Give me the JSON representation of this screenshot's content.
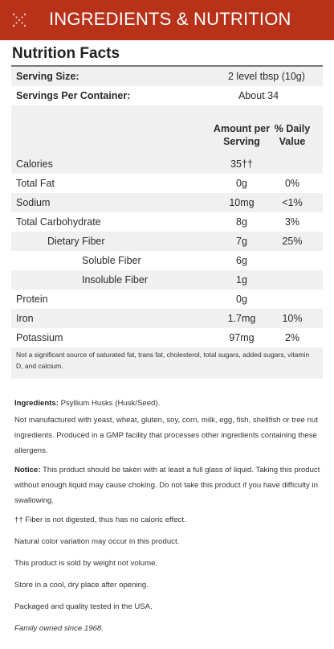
{
  "header": {
    "title": "INGREDIENTS & NUTRITION",
    "icon": "sparkle-icon",
    "bg_color": "#b8321a"
  },
  "nutrition": {
    "title": "Nutrition Facts",
    "serving_size_label": "Serving Size:",
    "serving_size_value": "2 level tbsp (10g)",
    "servings_label": "Servings Per Container:",
    "servings_value": "About 34",
    "col_amount_line1": "Amount per",
    "col_amount_line2": "Serving",
    "col_dv_line1": "% Daily",
    "col_dv_line2": "Value",
    "rows": [
      {
        "label": "Calories",
        "amount": "35††",
        "dv": ""
      },
      {
        "label": "Total Fat",
        "amount": "0g",
        "dv": "0%"
      },
      {
        "label": "Sodium",
        "amount": "10mg",
        "dv": "<1%"
      },
      {
        "label": "Total Carbohydrate",
        "amount": "8g",
        "dv": "3%"
      },
      {
        "label": "Dietary Fiber",
        "amount": "7g",
        "dv": "25%"
      },
      {
        "label": "Soluble Fiber",
        "amount": "6g",
        "dv": ""
      },
      {
        "label": "Insoluble Fiber",
        "amount": "1g",
        "dv": ""
      },
      {
        "label": "Protein",
        "amount": "0g",
        "dv": ""
      },
      {
        "label": "Iron",
        "amount": "1.7mg",
        "dv": "10%"
      },
      {
        "label": "Potassium",
        "amount": "97mg",
        "dv": "2%"
      }
    ],
    "footnote": "Not a significant source of saturated fat, trans fat, cholesterol, total sugars, added sugars, vitamin D, and calcium."
  },
  "info": {
    "ingredients_label": "Ingredients:",
    "ingredients_value": " Psyllium Husks (Husk/Seed).",
    "allergens": "Not manufactured with yeast, wheat, gluten, soy, corn, milk, egg, fish, shellfish or tree nut ingredients. Produced in a GMP facility that processes other ingredients containing these allergens.",
    "notice_label": "Notice:",
    "notice_value": " This product should be taken with at least a full glass of liquid. Taking this product without enough liquid may cause choking. Do not take this product if you have difficulty in swallowing.",
    "fiber_note": "†† Fiber is not digested, thus has no caloric effect.",
    "color_note": "Natural color variation may occur in this product.",
    "weight_note": "This product is sold by weight not volume.",
    "storage_note": "Store in a cool, dry place after opening.",
    "packaged_note": "Packaged and quality tested in the USA.",
    "family_note": "Family owned since 1968."
  }
}
